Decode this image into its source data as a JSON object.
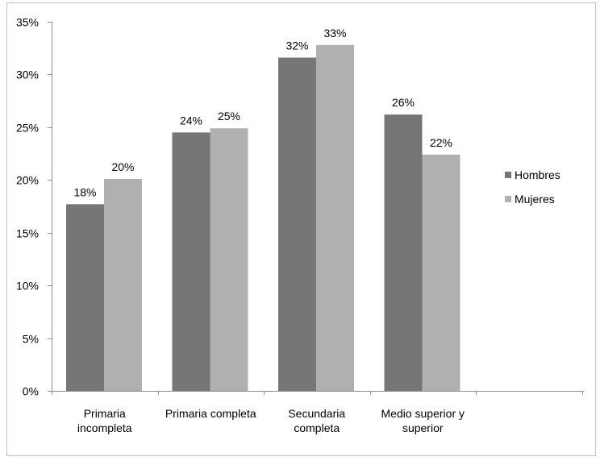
{
  "chart_data": {
    "type": "bar",
    "categories": [
      [
        "Primaria",
        "incompleta"
      ],
      [
        "Primaria completa"
      ],
      [
        "Secundaria",
        "completa"
      ],
      [
        "Medio superior y",
        "superior"
      ]
    ],
    "series": [
      {
        "name": "Hombres",
        "values": [
          17.7,
          24.5,
          31.6,
          26.2
        ],
        "labels": [
          "18%",
          "24%",
          "32%",
          "26%"
        ]
      },
      {
        "name": "Mujeres",
        "values": [
          20.1,
          24.9,
          32.8,
          22.4
        ],
        "labels": [
          "20%",
          "25%",
          "33%",
          "22%"
        ]
      }
    ],
    "colors": {
      "Hombres": "#767676",
      "Mujeres": "#b0b0b0"
    },
    "ylim": [
      0,
      35
    ],
    "yticks": [
      {
        "value": 0,
        "label": "0%"
      },
      {
        "value": 5,
        "label": "5%"
      },
      {
        "value": 10,
        "label": "10%"
      },
      {
        "value": 15,
        "label": "15%"
      },
      {
        "value": 20,
        "label": "20%"
      },
      {
        "value": 25,
        "label": "25%"
      },
      {
        "value": 30,
        "label": "30%"
      },
      {
        "value": 35,
        "label": "35%"
      }
    ],
    "grid": false,
    "legend_position": "right",
    "title": "",
    "xlabel": "",
    "ylabel": ""
  }
}
